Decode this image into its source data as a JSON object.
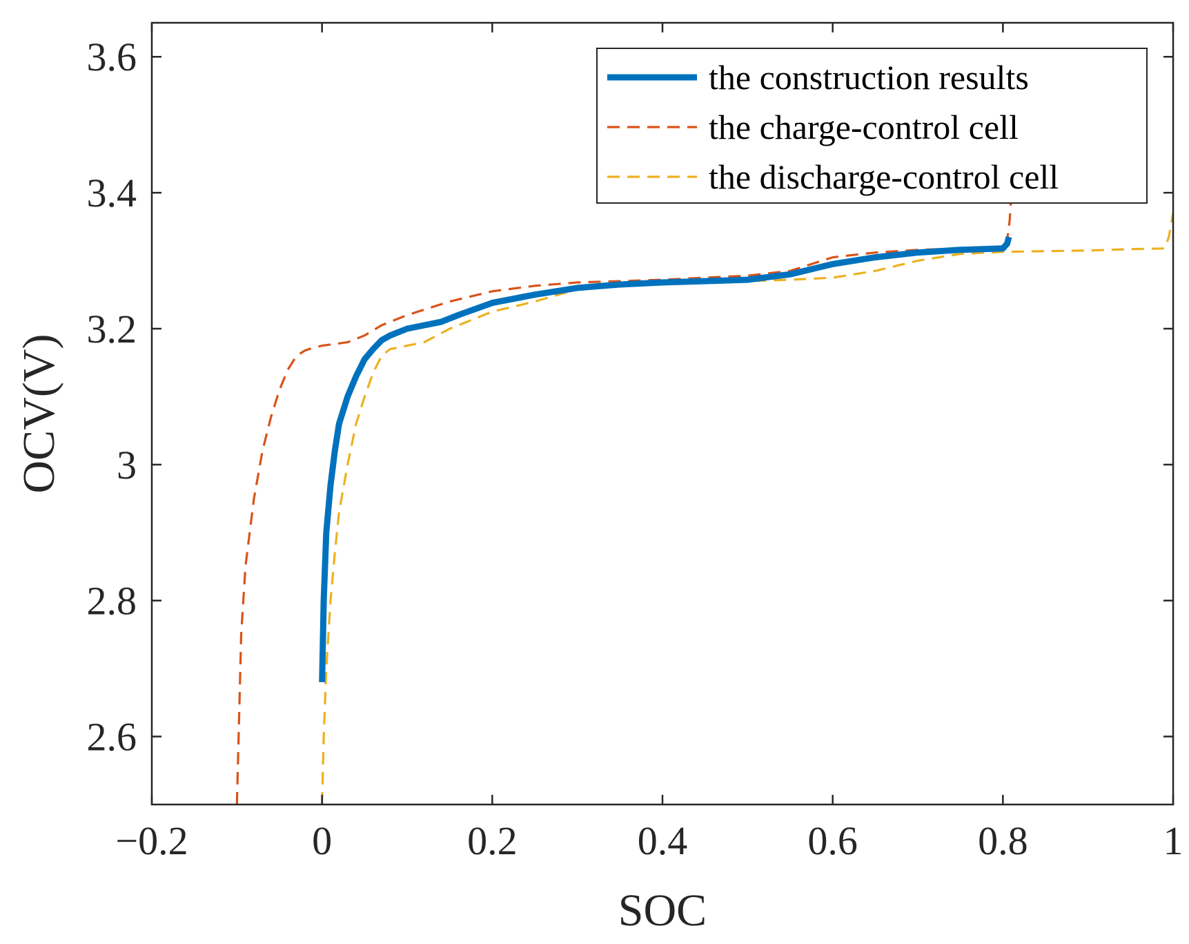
{
  "chart_data": {
    "type": "line",
    "title": "",
    "xlabel": "SOC",
    "ylabel": "OCV(V)",
    "xlim": [
      -0.2,
      1.0
    ],
    "ylim": [
      2.5,
      3.65
    ],
    "xticks": [
      -0.2,
      0,
      0.2,
      0.4,
      0.6,
      0.8,
      1
    ],
    "xtick_labels": [
      "−0.2",
      "0",
      "0.2",
      "0.4",
      "0.6",
      "0.8",
      "1"
    ],
    "yticks": [
      2.6,
      2.8,
      3.0,
      3.2,
      3.4,
      3.6
    ],
    "ytick_labels": [
      "2.6",
      "2.8",
      "3",
      "3.2",
      "3.4",
      "3.6"
    ],
    "grid": false,
    "legend_position": "top-right",
    "series": [
      {
        "name": "the construction results",
        "color": "#0072BD",
        "style": "solid",
        "x": [
          0.0,
          0.002,
          0.005,
          0.01,
          0.015,
          0.02,
          0.03,
          0.04,
          0.05,
          0.06,
          0.07,
          0.08,
          0.1,
          0.12,
          0.14,
          0.16,
          0.2,
          0.25,
          0.3,
          0.35,
          0.4,
          0.45,
          0.5,
          0.55,
          0.6,
          0.65,
          0.7,
          0.75,
          0.8,
          0.805,
          0.807
        ],
        "y": [
          2.68,
          2.8,
          2.9,
          2.97,
          3.02,
          3.06,
          3.1,
          3.13,
          3.155,
          3.17,
          3.183,
          3.19,
          3.2,
          3.205,
          3.21,
          3.22,
          3.238,
          3.25,
          3.26,
          3.265,
          3.268,
          3.27,
          3.272,
          3.28,
          3.295,
          3.305,
          3.312,
          3.316,
          3.318,
          3.325,
          3.335
        ]
      },
      {
        "name": "the charge-control cell",
        "color": "#D95319",
        "style": "dashed",
        "x": [
          -0.1,
          -0.098,
          -0.095,
          -0.09,
          -0.085,
          -0.08,
          -0.07,
          -0.06,
          -0.05,
          -0.04,
          -0.03,
          -0.02,
          -0.01,
          0.0,
          0.03,
          0.05,
          0.07,
          0.1,
          0.15,
          0.2,
          0.25,
          0.3,
          0.35,
          0.4,
          0.45,
          0.5,
          0.55,
          0.6,
          0.65,
          0.7,
          0.75,
          0.8,
          0.805,
          0.808,
          0.81
        ],
        "y": [
          2.5,
          2.6,
          2.75,
          2.85,
          2.9,
          2.95,
          3.02,
          3.07,
          3.11,
          3.14,
          3.16,
          3.168,
          3.172,
          3.175,
          3.18,
          3.19,
          3.205,
          3.22,
          3.24,
          3.255,
          3.263,
          3.268,
          3.27,
          3.272,
          3.275,
          3.278,
          3.285,
          3.305,
          3.312,
          3.316,
          3.318,
          3.32,
          3.33,
          3.36,
          3.4
        ]
      },
      {
        "name": "the discharge-control cell",
        "color": "#EDB120",
        "style": "dashed",
        "x": [
          0.0,
          0.002,
          0.005,
          0.01,
          0.015,
          0.02,
          0.03,
          0.04,
          0.05,
          0.06,
          0.07,
          0.08,
          0.1,
          0.12,
          0.15,
          0.2,
          0.25,
          0.3,
          0.35,
          0.4,
          0.45,
          0.5,
          0.55,
          0.6,
          0.65,
          0.7,
          0.75,
          0.8,
          0.85,
          0.9,
          0.95,
          0.99,
          0.995,
          1.0
        ],
        "y": [
          2.5,
          2.6,
          2.7,
          2.8,
          2.87,
          2.93,
          3.0,
          3.06,
          3.1,
          3.135,
          3.16,
          3.17,
          3.175,
          3.18,
          3.2,
          3.225,
          3.24,
          3.258,
          3.265,
          3.268,
          3.268,
          3.27,
          3.272,
          3.275,
          3.285,
          3.3,
          3.31,
          3.313,
          3.314,
          3.315,
          3.317,
          3.318,
          3.335,
          3.37
        ]
      }
    ]
  }
}
